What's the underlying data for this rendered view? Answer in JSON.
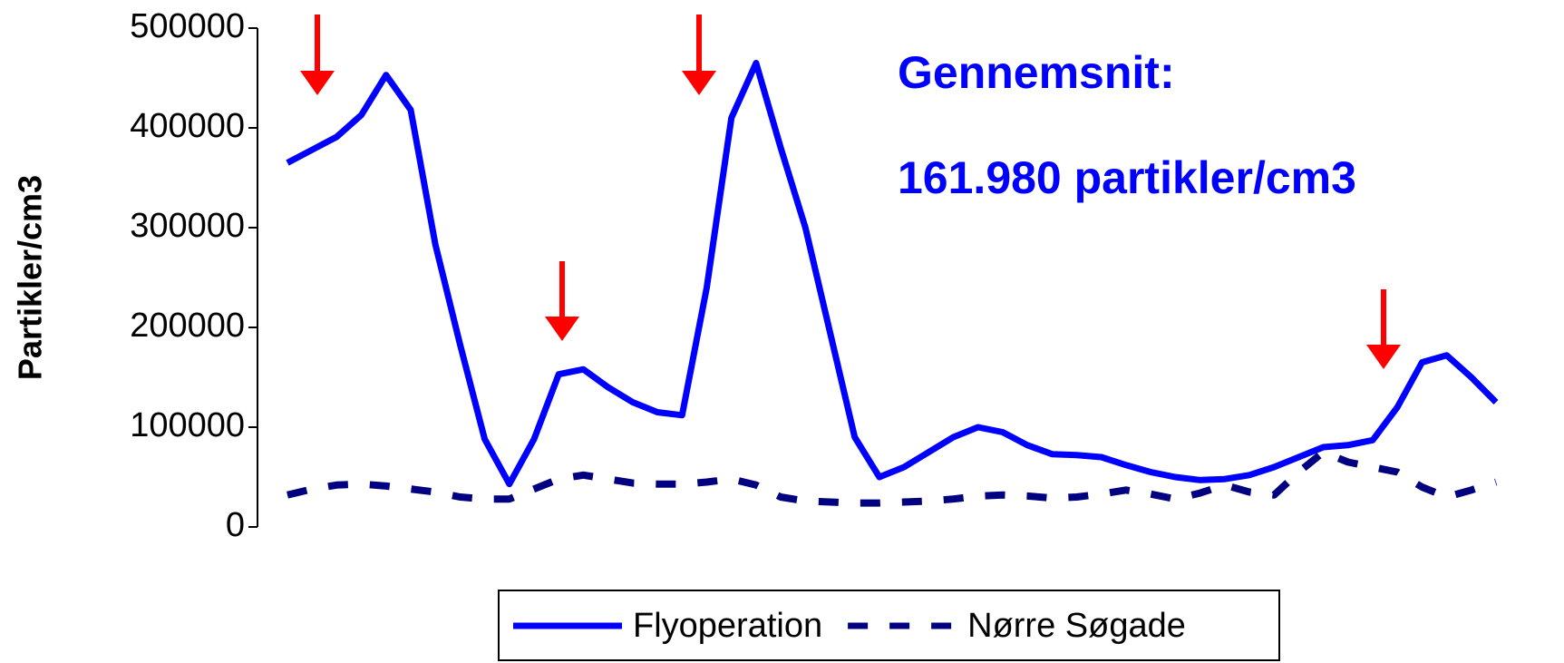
{
  "chart_data": {
    "type": "line",
    "y_label": "Partikler/cm3",
    "annotations": [
      "Gennemsnit:",
      "161.980 partikler/cm3"
    ],
    "categories": [
      null,
      null,
      null,
      null,
      null,
      null,
      null,
      null,
      null,
      null,
      null,
      null,
      null,
      null,
      null,
      null,
      null,
      null,
      null,
      null,
      null,
      null,
      null,
      null,
      null,
      null,
      null,
      null,
      null,
      null,
      null,
      null,
      null,
      null,
      null,
      null,
      null,
      null,
      null,
      null,
      null,
      null,
      null,
      null,
      null,
      null,
      null,
      null,
      null,
      null
    ],
    "series": [
      {
        "name": "Flyoperation",
        "color": "#0000ff",
        "style": "solid",
        "values": [
          365000,
          378000,
          391000,
          413000,
          453000,
          418000,
          283000,
          183000,
          88000,
          43000,
          88000,
          153000,
          158000,
          140000,
          125000,
          115000,
          112000,
          240000,
          410000,
          465000,
          380000,
          300000,
          195000,
          90000,
          50000,
          60000,
          75000,
          90000,
          100000,
          95000,
          82000,
          73000,
          72000,
          70000,
          62000,
          55000,
          50000,
          47000,
          48000,
          52000,
          60000,
          70000,
          80000,
          82000,
          87000,
          120000,
          165000,
          172000,
          150000,
          125000
        ]
      },
      {
        "name": "Nørre Søgade",
        "color": "#000080",
        "style": "dashed",
        "values": [
          32000,
          38000,
          42000,
          43000,
          41000,
          38000,
          35000,
          30000,
          28000,
          28000,
          38000,
          48000,
          52000,
          48000,
          44000,
          43000,
          43000,
          45000,
          48000,
          42000,
          30000,
          26000,
          25000,
          24000,
          24000,
          25000,
          26000,
          28000,
          31000,
          32000,
          31000,
          29000,
          30000,
          33000,
          37000,
          33000,
          28000,
          34000,
          42000,
          35000,
          32000,
          55000,
          75000,
          65000,
          60000,
          55000,
          40000,
          30000,
          37000,
          45000
        ]
      }
    ],
    "ylim": [
      0,
      500000
    ],
    "yticks": [
      0,
      100000,
      200000,
      300000,
      400000,
      500000
    ],
    "legend": "bottom"
  }
}
